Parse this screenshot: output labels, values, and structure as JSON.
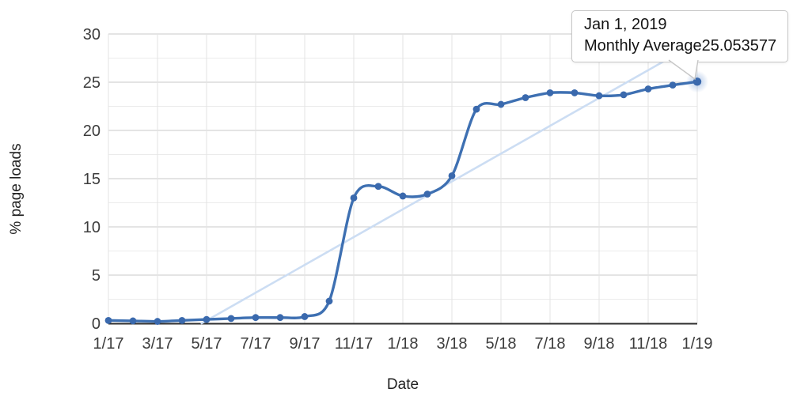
{
  "chart_data": {
    "type": "line",
    "title": "",
    "xlabel": "Date",
    "ylabel": "% page loads",
    "categories": [
      "1/17",
      "2/17",
      "3/17",
      "4/17",
      "5/17",
      "6/17",
      "7/17",
      "8/17",
      "9/17",
      "10/17",
      "11/17",
      "12/17",
      "1/18",
      "2/18",
      "3/18",
      "4/18",
      "5/18",
      "6/18",
      "7/18",
      "8/18",
      "9/18",
      "10/18",
      "11/18",
      "12/18",
      "1/19"
    ],
    "series": [
      {
        "name": "Monthly Average",
        "values": [
          0.3,
          0.25,
          0.2,
          0.3,
          0.4,
          0.5,
          0.6,
          0.6,
          0.7,
          2.3,
          13.0,
          14.2,
          13.2,
          13.4,
          15.3,
          22.2,
          22.7,
          23.4,
          23.9,
          23.9,
          23.6,
          23.7,
          24.3,
          24.7,
          25.053577
        ]
      }
    ],
    "x_tick_labels": [
      "1/17",
      "3/17",
      "5/17",
      "7/17",
      "9/17",
      "11/17",
      "1/18",
      "3/18",
      "5/18",
      "7/18",
      "9/18",
      "11/18",
      "1/19"
    ],
    "x_tick_every": 2,
    "y_ticks": [
      0,
      5,
      10,
      15,
      20,
      25,
      30
    ],
    "y_minor_step": 2.5,
    "ylim": [
      0,
      30
    ],
    "grid": true,
    "legend_position": "none",
    "overlay_line": {
      "from": {
        "month_index": 3.8,
        "value": 0
      },
      "to": {
        "month_index": 22.94,
        "value": 27.6
      }
    },
    "highlighted_point": {
      "category": "1/19",
      "index": 24,
      "value": 25.053577
    }
  },
  "tooltip": {
    "date": "Jan 1, 2019",
    "series_label": "Monthly Average",
    "value": "25.053577"
  },
  "colors": {
    "line": "#3e70b2",
    "marker": "#3a69ad",
    "overlay_line": "#ccddf3",
    "halo": "#7da3d8",
    "grid_major": "#c9c9c9",
    "grid_minor": "#ebebeb",
    "grid_vertical": "#e3e3e3",
    "axis_line": "#2e2e2e",
    "tick_text": "#3c3c3c",
    "tooltip_border": "#c7c7c7",
    "tooltip_text": "#141414"
  }
}
